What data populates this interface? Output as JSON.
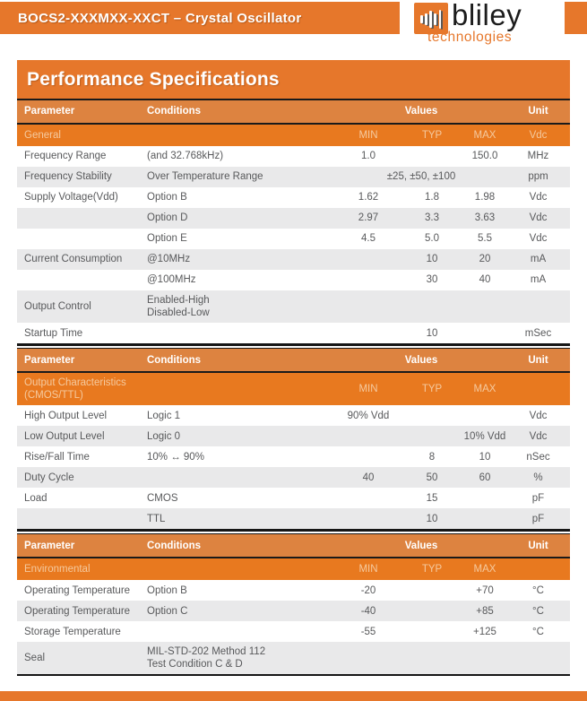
{
  "page": {
    "title_bar": "BOCS2-XXXMXX-XXCT – Crystal Oscillator",
    "section_title": "Performance Specifications",
    "logo": {
      "name": "bliley",
      "sub": "technologies"
    },
    "colors": {
      "orange_main": "#E6772B",
      "header_row_bg": "#DD8340",
      "section_row_bg": "#E8791F",
      "pale_text": "#F5CA9F",
      "alt_row_bg": "#E9E9EA",
      "body_text": "#58595B"
    }
  },
  "tables": [
    {
      "header": {
        "param": "Parameter",
        "cond": "Conditions",
        "values": "Values",
        "unit": "Unit"
      },
      "section": {
        "label": "General",
        "label2": "",
        "min": "MIN",
        "typ": "TYP",
        "max": "MAX",
        "unit": "Vdc"
      },
      "rows": [
        {
          "param": "Frequency Range",
          "cond": "(and 32.768kHz)",
          "min": "1.0",
          "typ": "",
          "max": "150.0",
          "unit": "MHz"
        },
        {
          "param": "Frequency Stability",
          "cond": "Over Temperature Range",
          "span": "±25, ±50, ±100",
          "unit": "ppm"
        },
        {
          "param": "Supply Voltage(Vdd)",
          "cond": "Option B",
          "min": "1.62",
          "typ": "1.8",
          "max": "1.98",
          "unit": "Vdc"
        },
        {
          "param": "",
          "cond": "Option D",
          "min": "2.97",
          "typ": "3.3",
          "max": "3.63",
          "unit": "Vdc"
        },
        {
          "param": "",
          "cond": "Option E",
          "min": "4.5",
          "typ": "5.0",
          "max": "5.5",
          "unit": "Vdc"
        },
        {
          "param": "Current Consumption",
          "cond": "@10MHz",
          "min": "",
          "typ": "10",
          "max": "20",
          "unit": "mA"
        },
        {
          "param": "",
          "cond": "@100MHz",
          "min": "",
          "typ": "30",
          "max": "40",
          "unit": "mA"
        },
        {
          "param": "Output Control",
          "cond": "Enabled-High",
          "cond2": "Disabled-Low",
          "min": "",
          "typ": "",
          "max": "",
          "unit": "",
          "tall": true
        },
        {
          "param": "Startup Time",
          "cond": "",
          "min": "",
          "typ": "10",
          "max": "",
          "unit": "mSec"
        }
      ]
    },
    {
      "header": {
        "param": "Parameter",
        "cond": "Conditions",
        "values": "Values",
        "unit": "Unit"
      },
      "section": {
        "label": "Output Characteristics",
        "label2": "(CMOS/TTL)",
        "min": "MIN",
        "typ": "TYP",
        "max": "MAX",
        "unit": ""
      },
      "rows": [
        {
          "param": "High Output Level",
          "cond": "Logic 1",
          "min": "90% Vdd",
          "typ": "",
          "max": "",
          "unit": "Vdc"
        },
        {
          "param": "Low Output Level",
          "cond": "Logic 0",
          "min": "",
          "typ": "",
          "max": "10% Vdd",
          "unit": "Vdc"
        },
        {
          "param": "Rise/Fall Time",
          "cond": "10% ↔ 90%",
          "min": "",
          "typ": "8",
          "max": "10",
          "unit": "nSec"
        },
        {
          "param": "Duty Cycle",
          "cond": "",
          "min": "40",
          "typ": "50",
          "max": "60",
          "unit": "%"
        },
        {
          "param": "Load",
          "cond": "CMOS",
          "min": "",
          "typ": "15",
          "max": "",
          "unit": "pF"
        },
        {
          "param": "",
          "cond": "TTL",
          "min": "",
          "typ": "10",
          "max": "",
          "unit": "pF"
        }
      ]
    },
    {
      "header": {
        "param": "Parameter",
        "cond": "Conditions",
        "values": "Values",
        "unit": "Unit"
      },
      "section": {
        "label": "Environmental",
        "label2": "",
        "min": "MIN",
        "typ": "TYP",
        "max": "MAX",
        "unit": ""
      },
      "rows": [
        {
          "param": "Operating Temperature",
          "cond": "Option B",
          "min": "-20",
          "typ": "",
          "max": "+70",
          "unit": "°C"
        },
        {
          "param": "Operating Temperature",
          "cond": "Option C",
          "min": "-40",
          "typ": "",
          "max": "+85",
          "unit": "°C"
        },
        {
          "param": "Storage Temperature",
          "cond": "",
          "min": "-55",
          "typ": "",
          "max": "+125",
          "unit": "°C"
        },
        {
          "param": "Seal",
          "cond": "MIL-STD-202 Method 112",
          "cond2": "Test Condition C & D",
          "min": "",
          "typ": "",
          "max": "",
          "unit": "",
          "tall": true
        }
      ]
    }
  ]
}
